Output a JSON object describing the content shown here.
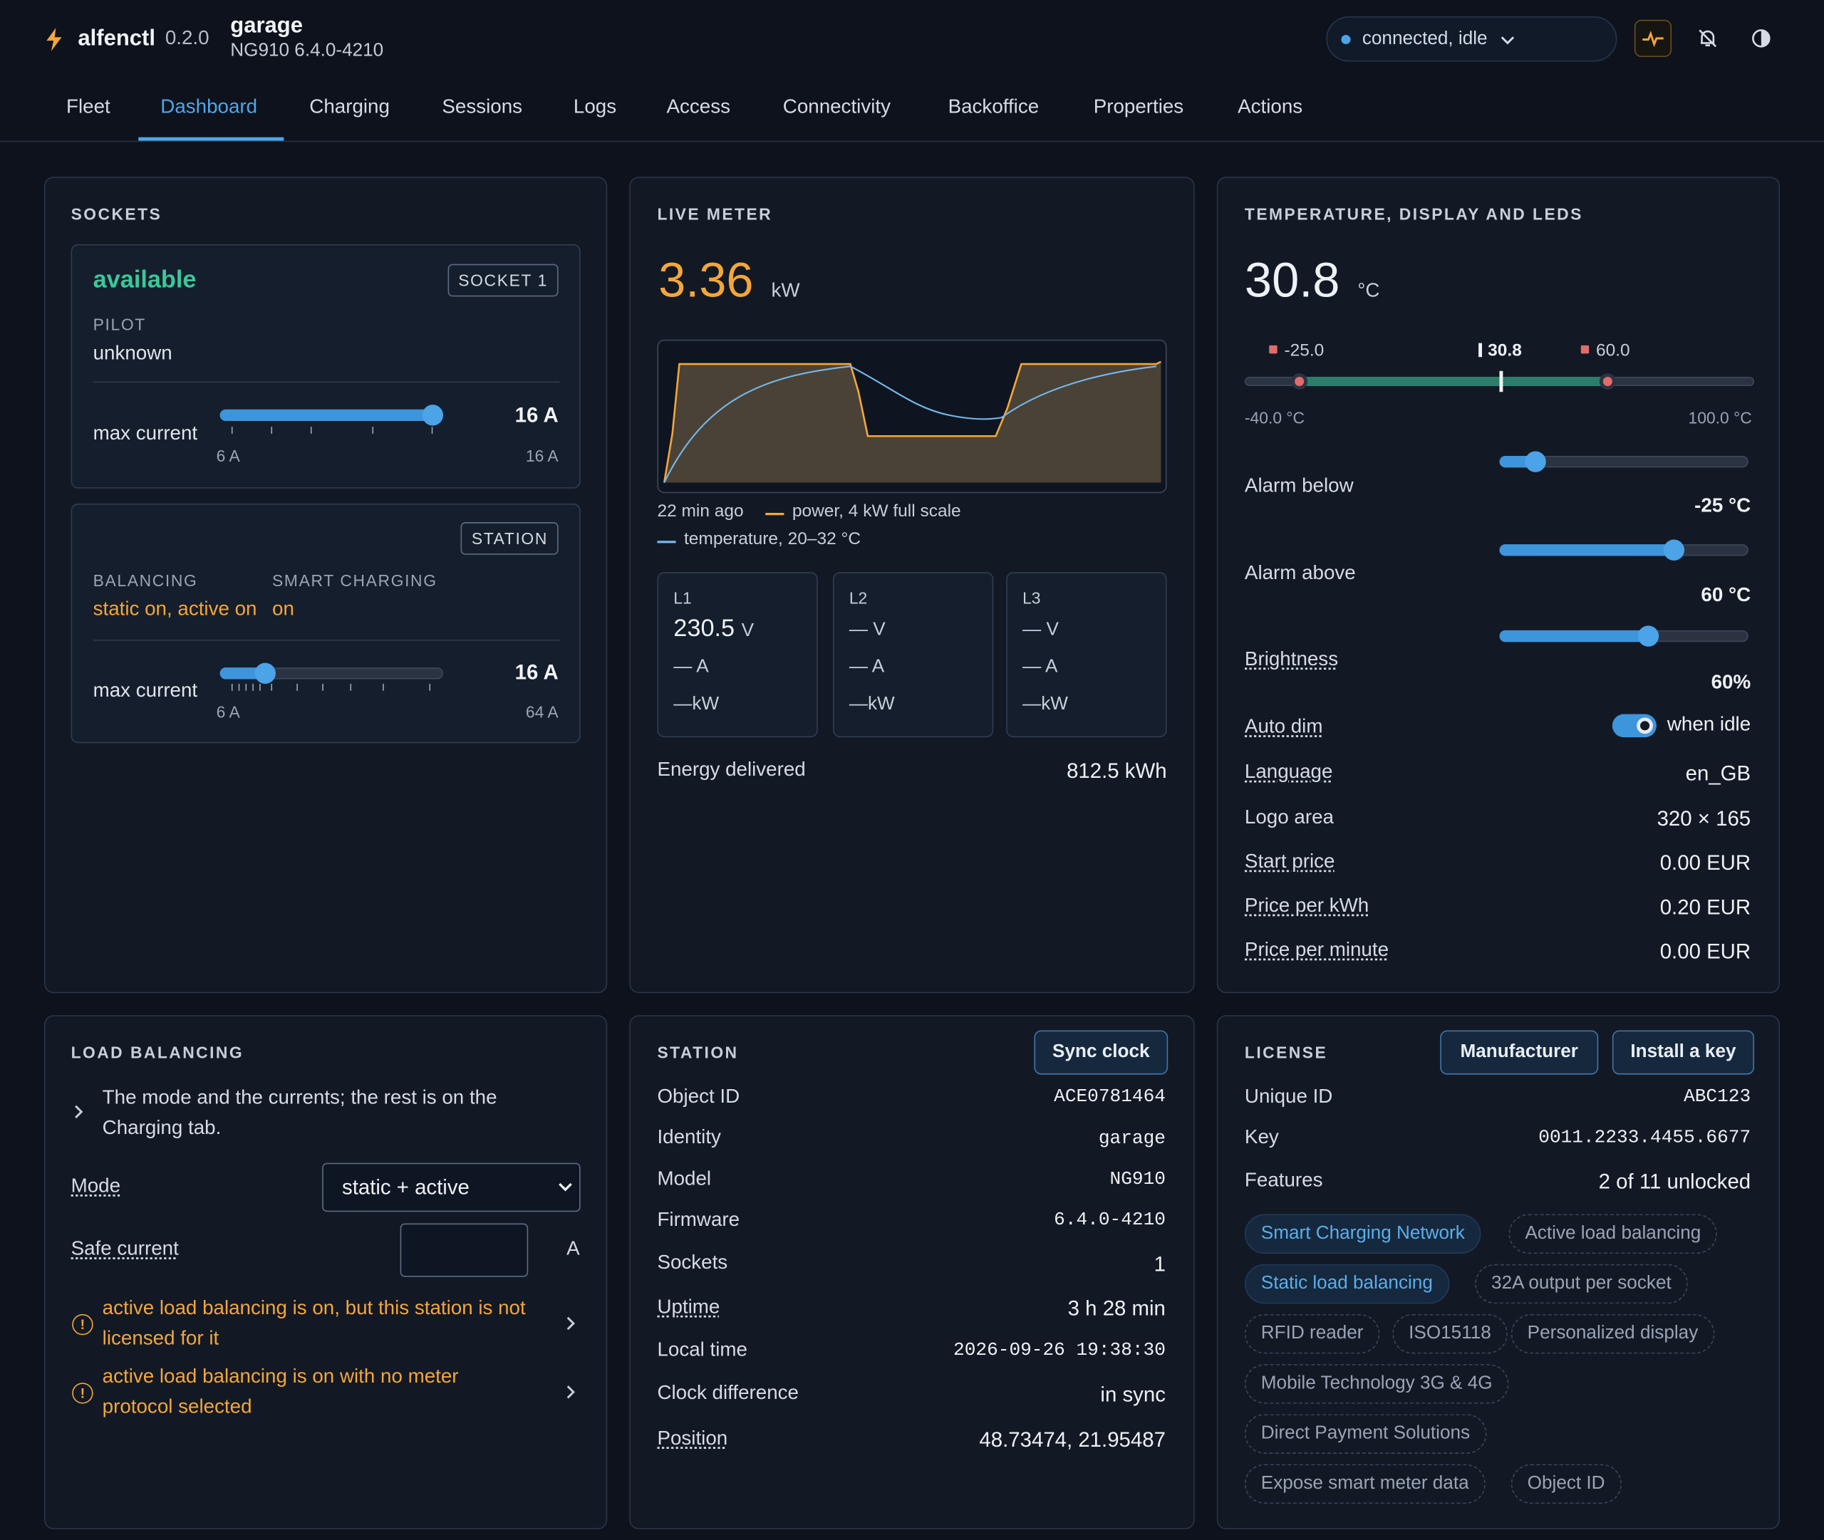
{
  "header": {
    "app_name": "alfenctl",
    "app_version": "0.2.0",
    "station_name": "garage",
    "station_firmware": "NG910 6.4.0-4210",
    "connection_status": "connected, idle",
    "accent_color": "#4fa6e8",
    "icons": [
      "bolt-icon",
      "chevron-down-icon",
      "activity-icon",
      "bell-off-icon",
      "contrast-icon"
    ]
  },
  "tabs": [
    "Fleet",
    "Dashboard",
    "Charging",
    "Sessions",
    "Logs",
    "Access",
    "Connectivity",
    "Backoffice",
    "Properties",
    "Actions"
  ],
  "active_tab": "Dashboard",
  "sockets": {
    "title": "SOCKETS",
    "socket": {
      "status": "available",
      "tag": "SOCKET 1",
      "pilot_label": "PILOT",
      "pilot_value": "unknown",
      "max_current_label": "max current",
      "max_current_value": "16 A",
      "min_label": "6 A",
      "max_label": "16 A",
      "slider_fraction": 1.0
    },
    "station": {
      "tag": "STATION",
      "balancing_label": "BALANCING",
      "balancing_value": "static on, active on",
      "smart_label": "SMART CHARGING",
      "smart_value": "on",
      "max_current_label": "max current",
      "max_current_value": "16 A",
      "min_label": "6 A",
      "max_label": "64 A",
      "slider_fraction": 0.17
    }
  },
  "live_meter": {
    "title": "LIVE METER",
    "power_value": "3.36",
    "power_unit": "kW",
    "chart_caption_time": "22 min ago",
    "legend_power": "power, 4 kW full scale",
    "legend_temp": "temperature, 20–32 °C",
    "phases": [
      {
        "name": "L1",
        "voltage": "230.5",
        "v_unit": "V",
        "current": "— A",
        "power": "—kW"
      },
      {
        "name": "L2",
        "voltage": "—",
        "v_unit": "V",
        "current": "— A",
        "power": "—kW"
      },
      {
        "name": "L3",
        "voltage": "—",
        "v_unit": "V",
        "current": "— A",
        "power": "—kW"
      }
    ],
    "energy_label": "Energy delivered",
    "energy_value": "812.5 kWh"
  },
  "temperature": {
    "title": "TEMPERATURE, DISPLAY AND LEDS",
    "value": "30.8",
    "unit": "°C",
    "low_marker": "-25.0",
    "current_marker": "30.8",
    "high_marker": "60.0",
    "range_min": "-40.0 °C",
    "range_max": "100.0 °C",
    "alarm_below_label": "Alarm below",
    "alarm_below_value": "-25 °C",
    "alarm_below_fraction": 0.13,
    "alarm_above_label": "Alarm above",
    "alarm_above_value": "60 °C",
    "alarm_above_fraction": 0.7,
    "brightness_label": "Brightness",
    "brightness_value": "60%",
    "brightness_fraction": 0.6,
    "auto_dim_label": "Auto dim",
    "auto_dim_value": "when idle",
    "language_label": "Language",
    "language_value": "en_GB",
    "logo_label": "Logo area",
    "logo_value": "320 × 165",
    "start_price_label": "Start price",
    "start_price_value": "0.00 EUR",
    "kwh_price_label": "Price per kWh",
    "kwh_price_value": "0.20 EUR",
    "minute_price_label": "Price per minute",
    "minute_price_value": "0.00 EUR"
  },
  "load_balancing": {
    "title": "LOAD BALANCING",
    "description": "The mode and the currents; the rest is on the Charging tab.",
    "mode_label": "Mode",
    "mode_value": "static + active",
    "safe_label": "Safe current",
    "safe_unit": "A",
    "warnings": [
      "active load balancing is on, but this station is not licensed for it",
      "active load balancing is on with no meter protocol selected"
    ]
  },
  "station": {
    "title": "STATION",
    "sync_button": "Sync clock",
    "rows": [
      {
        "label": "Object ID",
        "value": "ACE0781464",
        "mono": true
      },
      {
        "label": "Identity",
        "value": "garage",
        "mono": true
      },
      {
        "label": "Model",
        "value": "NG910",
        "mono": true
      },
      {
        "label": "Firmware",
        "value": "6.4.0-4210",
        "mono": true
      },
      {
        "label": "Sockets",
        "value": "1",
        "mono": false
      },
      {
        "label": "Uptime",
        "value": "3 h 28 min",
        "mono": false
      },
      {
        "label": "Local time",
        "value": "2026-09-26 19:38:30",
        "mono": true
      },
      {
        "label": "Clock difference",
        "value": "in sync",
        "mono": false
      },
      {
        "label": "Position",
        "value": "48.73474, 21.95487",
        "mono": false
      }
    ]
  },
  "license": {
    "title": "LICENSE",
    "manufacturer_button": "Manufacturer",
    "install_button": "Install a key",
    "unique_id_label": "Unique ID",
    "unique_id_value": "ABC123",
    "key_label": "Key",
    "key_value": "0011.2233.4455.6677",
    "features_label": "Features",
    "features_value": "2 of 11 unlocked",
    "chips": [
      {
        "label": "Smart Charging Network",
        "on": true
      },
      {
        "label": "Active load balancing",
        "on": false
      },
      {
        "label": "Static load balancing",
        "on": true
      },
      {
        "label": "32A output per socket",
        "on": false
      },
      {
        "label": "RFID reader",
        "on": false
      },
      {
        "label": "ISO15118",
        "on": false
      },
      {
        "label": "Personalized display",
        "on": false
      },
      {
        "label": "Mobile Technology 3G & 4G",
        "on": false
      },
      {
        "label": "Direct Payment Solutions",
        "on": false
      },
      {
        "label": "Expose smart meter data",
        "on": false
      },
      {
        "label": "Object ID",
        "on": false
      }
    ]
  }
}
